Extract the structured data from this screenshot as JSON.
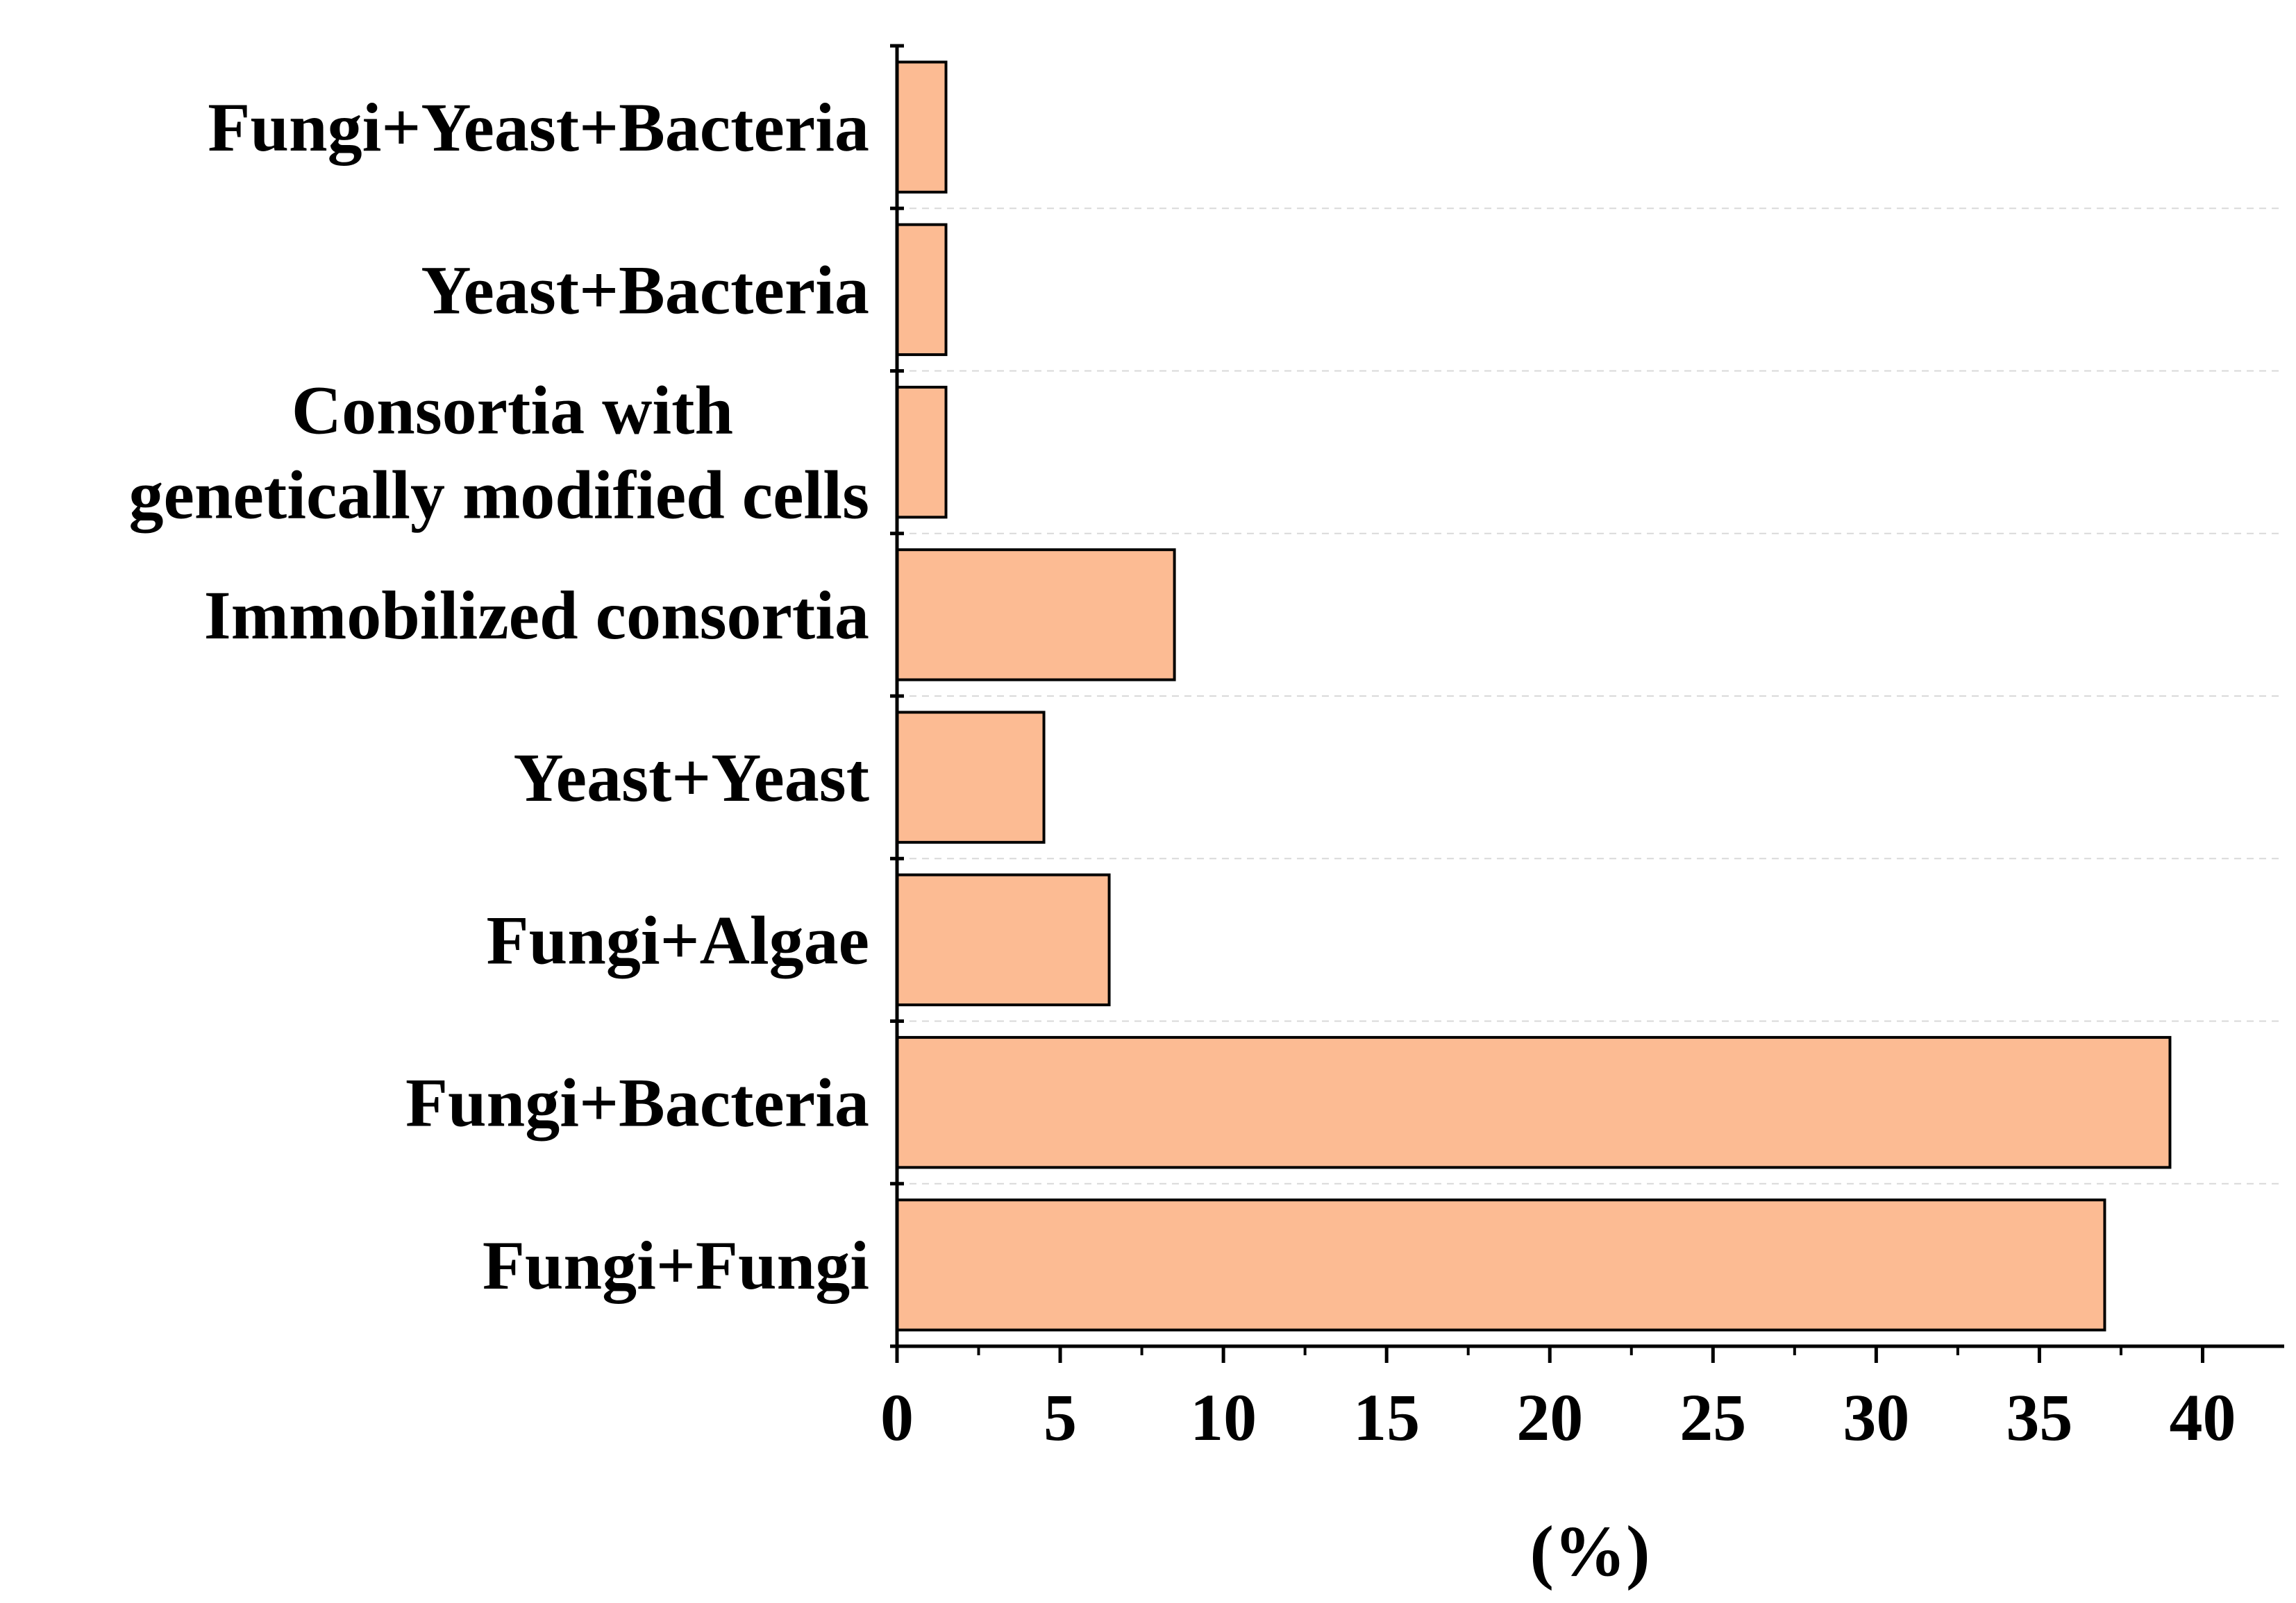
{
  "chart_data": {
    "type": "bar",
    "orientation": "horizontal",
    "categories": [
      "Fungi+Yeast+Bacteria",
      "Yeast+Bacteria",
      "Consortia with genetically modified cells",
      "Immobilized consortia",
      "Yeast+Yeast",
      "Fungi+Algae",
      "Fungi+Bacteria",
      "Fungi+Fungi"
    ],
    "category_lines": [
      [
        "Fungi+Yeast+Bacteria"
      ],
      [
        "Yeast+Bacteria"
      ],
      [
        "Consortia with",
        "genetically modified cells"
      ],
      [
        "Immobilized consortia"
      ],
      [
        "Yeast+Yeast"
      ],
      [
        "Fungi+Algae"
      ],
      [
        "Fungi+Bacteria"
      ],
      [
        "Fungi+Fungi"
      ]
    ],
    "values": [
      1.5,
      1.5,
      1.5,
      8.5,
      4.5,
      6.5,
      39,
      37
    ],
    "xlabel": "(%)",
    "xlim": [
      0,
      42.5
    ],
    "xticks": [
      "0",
      "5",
      "10",
      "15",
      "20",
      "25",
      "30",
      "35",
      "40"
    ],
    "grid": "horizontal dashed",
    "colors": {
      "bar_fill": "#fcbb93",
      "bar_stroke": "#000000",
      "grid": "#d9d9d9"
    }
  }
}
